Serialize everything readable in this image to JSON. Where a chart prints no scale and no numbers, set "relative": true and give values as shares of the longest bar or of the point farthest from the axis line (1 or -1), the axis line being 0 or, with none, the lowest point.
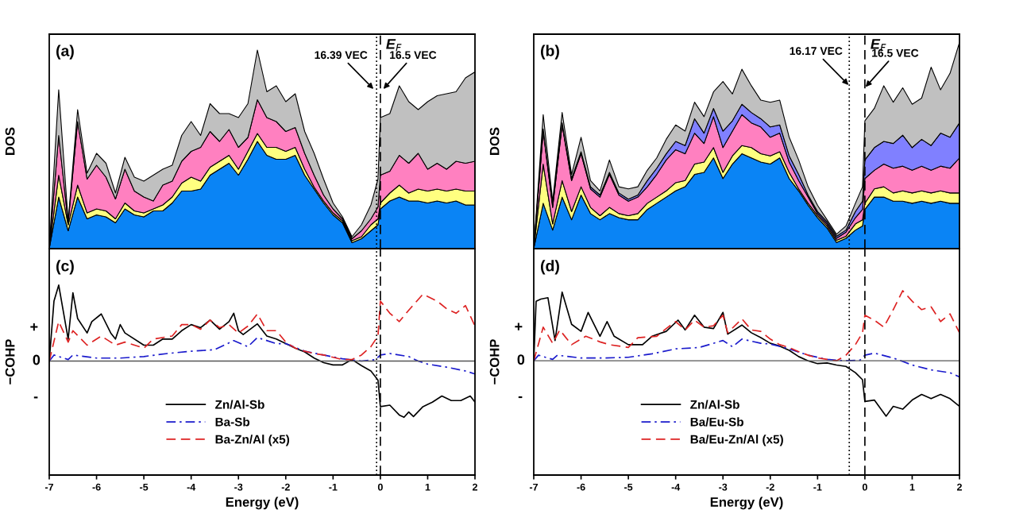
{
  "chart_data": [
    {
      "type": "area",
      "stacked": true,
      "relative": true,
      "ylabel": "DOS",
      "tick_labels": false,
      "xlim": [
        -7,
        2
      ],
      "ylim": [
        0,
        1.08
      ],
      "x": [
        -7,
        -6.8,
        -6.6,
        -6.4,
        -6.2,
        -6.0,
        -5.8,
        -5.6,
        -5.4,
        -5.2,
        -5.0,
        -4.8,
        -4.6,
        -4.4,
        -4.2,
        -4.0,
        -3.8,
        -3.6,
        -3.4,
        -3.2,
        -3.0,
        -2.8,
        -2.6,
        -2.4,
        -2.2,
        -2.0,
        -1.8,
        -1.6,
        -1.4,
        -1.2,
        -1.0,
        -0.8,
        -0.6,
        -0.4,
        -0.2,
        -0.05,
        0.0,
        0.2,
        0.4,
        0.6,
        0.8,
        1.0,
        1.2,
        1.4,
        1.6,
        1.8,
        2.0
      ],
      "series": [
        {
          "color": "#0a84f5",
          "values": [
            0,
            0.26,
            0.09,
            0.26,
            0.15,
            0.17,
            0.16,
            0.13,
            0.2,
            0.17,
            0.16,
            0.19,
            0.19,
            0.23,
            0.29,
            0.29,
            0.3,
            0.37,
            0.4,
            0.43,
            0.37,
            0.45,
            0.54,
            0.47,
            0.45,
            0.45,
            0.47,
            0.37,
            0.3,
            0.23,
            0.17,
            0.13,
            0.03,
            0.05,
            0.09,
            0.12,
            0.2,
            0.24,
            0.26,
            0.24,
            0.24,
            0.23,
            0.24,
            0.23,
            0.24,
            0.22,
            0.22
          ]
        },
        {
          "color": "#ffff80",
          "values": [
            0,
            0.11,
            0.03,
            0.06,
            0.03,
            0.03,
            0.03,
            0.02,
            0.03,
            0.02,
            0.02,
            0.01,
            0.03,
            0.03,
            0.04,
            0.07,
            0.04,
            0.04,
            0.04,
            0.04,
            0.03,
            0.04,
            0.04,
            0.04,
            0.06,
            0.04,
            0.04,
            0.03,
            0.01,
            0.01,
            0.01,
            0.01,
            0.01,
            0.01,
            0.03,
            0.03,
            0.03,
            0.04,
            0.06,
            0.04,
            0.06,
            0.06,
            0.06,
            0.06,
            0.06,
            0.07,
            0.07
          ]
        },
        {
          "color": "#ff80c0",
          "values": [
            0,
            0.2,
            0.01,
            0.32,
            0.17,
            0.22,
            0.17,
            0.1,
            0.17,
            0.1,
            0.08,
            0.04,
            0.1,
            0.08,
            0.11,
            0.13,
            0.17,
            0.18,
            0.1,
            0.13,
            0.11,
            0.07,
            0.17,
            0.15,
            0.13,
            0.1,
            0.1,
            0.08,
            0.06,
            0.03,
            0.02,
            0.01,
            0.01,
            0.03,
            0.03,
            0.06,
            0.14,
            0.11,
            0.15,
            0.15,
            0.18,
            0.11,
            0.13,
            0.11,
            0.14,
            0.14,
            0.15
          ]
        },
        {
          "color": "#c0c0c0",
          "values": [
            0,
            0.23,
            0.01,
            0.06,
            0.03,
            0.06,
            0.07,
            0.03,
            0.06,
            0.07,
            0.08,
            0.13,
            0.08,
            0.08,
            0.13,
            0.15,
            0.06,
            0.14,
            0.14,
            0.08,
            0.15,
            0.17,
            0.25,
            0.13,
            0.18,
            0.15,
            0.17,
            0.11,
            0.11,
            0.08,
            0.03,
            0.01,
            0.01,
            0.03,
            0.07,
            0.14,
            0.29,
            0.29,
            0.35,
            0.31,
            0.22,
            0.34,
            0.34,
            0.38,
            0.35,
            0.43,
            0.45
          ]
        }
      ],
      "ref_lines": [
        {
          "axis": "x",
          "value": -0.08,
          "line_style": "dotted"
        },
        {
          "axis": "x",
          "value": 0,
          "line_style": "dashed",
          "label": "E$_{F}$"
        }
      ],
      "annotations": [
        "(a)",
        {
          "text": "16.39 VEC",
          "x": -0.13,
          "y": 0.8
        },
        {
          "text": "16.5 VEC",
          "x": 0.05,
          "y": 0.8
        }
      ]
    },
    {
      "type": "area",
      "stacked": true,
      "relative": true,
      "ylabel": "DOS",
      "tick_labels": false,
      "xlim": [
        -7,
        2
      ],
      "ylim": [
        0,
        1.04
      ],
      "x": [
        -7,
        -6.8,
        -6.6,
        -6.4,
        -6.2,
        -6.0,
        -5.8,
        -5.6,
        -5.4,
        -5.2,
        -5.0,
        -4.8,
        -4.6,
        -4.4,
        -4.2,
        -4.0,
        -3.8,
        -3.6,
        -3.4,
        -3.2,
        -3.0,
        -2.8,
        -2.6,
        -2.4,
        -2.2,
        -2.0,
        -1.8,
        -1.6,
        -1.4,
        -1.2,
        -1.0,
        -0.8,
        -0.6,
        -0.4,
        -0.2,
        -0.05,
        0.0,
        0.2,
        0.4,
        0.6,
        0.8,
        1.0,
        1.2,
        1.4,
        1.6,
        1.8,
        2.0
      ],
      "series": [
        {
          "color": "#0a84f5",
          "values": [
            0,
            0.22,
            0.09,
            0.25,
            0.14,
            0.26,
            0.17,
            0.14,
            0.17,
            0.15,
            0.14,
            0.14,
            0.19,
            0.22,
            0.25,
            0.28,
            0.3,
            0.36,
            0.37,
            0.44,
            0.34,
            0.41,
            0.46,
            0.44,
            0.42,
            0.41,
            0.44,
            0.34,
            0.28,
            0.21,
            0.15,
            0.1,
            0.03,
            0.05,
            0.09,
            0.11,
            0.19,
            0.25,
            0.25,
            0.23,
            0.23,
            0.22,
            0.23,
            0.22,
            0.23,
            0.22,
            0.22
          ]
        },
        {
          "color": "#ffff80",
          "values": [
            0,
            0.19,
            0.03,
            0.08,
            0.04,
            0.04,
            0.03,
            0.02,
            0.03,
            0.02,
            0.02,
            0.03,
            0.03,
            0.03,
            0.03,
            0.04,
            0.03,
            0.05,
            0.05,
            0.05,
            0.03,
            0.04,
            0.04,
            0.05,
            0.04,
            0.04,
            0.03,
            0.03,
            0.01,
            0.01,
            0.01,
            0.01,
            0.01,
            0.01,
            0.03,
            0.03,
            0.03,
            0.04,
            0.05,
            0.04,
            0.05,
            0.05,
            0.05,
            0.05,
            0.05,
            0.05,
            0.05
          ]
        },
        {
          "color": "#ff80c0",
          "values": [
            0,
            0.16,
            0.08,
            0.27,
            0.15,
            0.16,
            0.09,
            0.09,
            0.16,
            0.09,
            0.07,
            0.08,
            0.08,
            0.11,
            0.15,
            0.16,
            0.13,
            0.15,
            0.09,
            0.15,
            0.12,
            0.12,
            0.15,
            0.12,
            0.13,
            0.09,
            0.09,
            0.05,
            0.04,
            0.03,
            0.01,
            0.01,
            0.01,
            0.02,
            0.03,
            0.05,
            0.12,
            0.09,
            0.11,
            0.12,
            0.12,
            0.11,
            0.12,
            0.11,
            0.12,
            0.12,
            0.17
          ]
        },
        {
          "color": "#8080ff",
          "values": [
            0,
            0.01,
            0.01,
            0.01,
            0.01,
            0.01,
            0.01,
            0.01,
            0.01,
            0.01,
            0.01,
            0.01,
            0.03,
            0.03,
            0.03,
            0.04,
            0.04,
            0.07,
            0.05,
            0.04,
            0.08,
            0.05,
            0.05,
            0.05,
            0.04,
            0.05,
            0.04,
            0.03,
            0.03,
            0.01,
            0.01,
            0.01,
            0.01,
            0.01,
            0.03,
            0.04,
            0.09,
            0.11,
            0.11,
            0.12,
            0.15,
            0.11,
            0.13,
            0.12,
            0.16,
            0.15,
            0.17
          ]
        },
        {
          "color": "#c0c0c0",
          "values": [
            0,
            0.07,
            0.02,
            0.05,
            0.02,
            0.07,
            0.03,
            0.02,
            0.06,
            0.03,
            0.05,
            0.04,
            0.05,
            0.05,
            0.07,
            0.08,
            0.07,
            0.08,
            0.08,
            0.08,
            0.24,
            0.13,
            0.17,
            0.13,
            0.09,
            0.12,
            0.12,
            0.09,
            0.07,
            0.04,
            0.03,
            0.01,
            0.01,
            0.02,
            0.04,
            0.07,
            0.19,
            0.19,
            0.27,
            0.2,
            0.23,
            0.21,
            0.2,
            0.38,
            0.21,
            0.31,
            0.39
          ]
        }
      ],
      "ref_lines": [
        {
          "axis": "x",
          "value": -0.33,
          "line_style": "dotted"
        },
        {
          "axis": "x",
          "value": 0,
          "line_style": "dashed",
          "label": "E$_{F}$"
        }
      ],
      "annotations": [
        "(b)",
        {
          "text": "16.17 VEC",
          "x": -0.33,
          "y": 0.79
        },
        {
          "text": "16.5 VEC",
          "x": 0.0,
          "y": 0.78
        }
      ]
    },
    {
      "type": "line",
      "relative": true,
      "xlabel": "Energy (eV)",
      "ylabel": "−COHP",
      "xlim": [
        -7,
        2
      ],
      "xticks": [
        -7,
        -6,
        -5,
        -4,
        -3,
        -2,
        -1,
        0,
        1,
        2
      ],
      "ylim": [
        -1.5,
        1.48
      ],
      "legend": "bottom",
      "series": [
        {
          "name": "Zn/Al-Sb",
          "color": "#000000",
          "line_style": "solid",
          "x": [
            -7,
            -6.9,
            -6.8,
            -6.6,
            -6.5,
            -6.4,
            -6.2,
            -6.1,
            -5.9,
            -5.7,
            -5.6,
            -5.5,
            -5.4,
            -5.0,
            -4.8,
            -4.6,
            -4.4,
            -4.2,
            -4.0,
            -3.8,
            -3.6,
            -3.4,
            -3.2,
            -3.1,
            -3.0,
            -2.9,
            -2.6,
            -2.4,
            -2.2,
            -2.0,
            -1.8,
            -1.6,
            -1.4,
            -1.2,
            -1.0,
            -0.8,
            -0.6,
            -0.4,
            -0.2,
            -0.05,
            0.0,
            0.2,
            0.4,
            0.5,
            0.6,
            0.7,
            0.9,
            1.1,
            1.3,
            1.5,
            1.7,
            1.9,
            2.0
          ],
          "values": [
            0,
            0.79,
            1.0,
            0.29,
            0.9,
            0.56,
            0.37,
            0.52,
            0.62,
            0.37,
            0.29,
            0.48,
            0.37,
            0.21,
            0.21,
            0.29,
            0.29,
            0.4,
            0.48,
            0.44,
            0.54,
            0.42,
            0.52,
            0.63,
            0.4,
            0.35,
            0.49,
            0.33,
            0.29,
            0.23,
            0.17,
            0.12,
            0.04,
            -0.02,
            -0.05,
            -0.05,
            0.02,
            -0.06,
            -0.13,
            -0.25,
            -0.6,
            -0.58,
            -0.71,
            -0.74,
            -0.67,
            -0.73,
            -0.6,
            -0.54,
            -0.46,
            -0.52,
            -0.52,
            -0.46,
            -0.54
          ]
        },
        {
          "name": "Ba-Sb",
          "color": "#1a1acc",
          "line_style": "dashdot",
          "x": [
            -7,
            -6.9,
            -6.6,
            -6.5,
            -6.0,
            -5.5,
            -5.0,
            -4.5,
            -4.0,
            -3.5,
            -3.1,
            -2.8,
            -2.6,
            -2.2,
            -2.0,
            -1.6,
            -1.2,
            -0.8,
            -0.4,
            -0.1,
            0.0,
            0.2,
            0.6,
            0.8,
            1.0,
            1.4,
            1.8,
            2.0
          ],
          "values": [
            0,
            0.08,
            0.02,
            0.08,
            0.04,
            0.04,
            0.06,
            0.1,
            0.13,
            0.15,
            0.27,
            0.19,
            0.31,
            0.23,
            0.23,
            0.13,
            0.08,
            0.03,
            0.0,
            0.02,
            0.08,
            0.1,
            0.06,
            0.0,
            -0.04,
            -0.08,
            -0.13,
            -0.17
          ]
        },
        {
          "name": "Ba-Zn/Al (x5)",
          "color": "#dd2222",
          "line_style": "dashed",
          "x": [
            -7,
            -6.8,
            -6.6,
            -6.5,
            -6.2,
            -5.9,
            -5.6,
            -5.4,
            -5.0,
            -4.8,
            -4.4,
            -4.2,
            -4.0,
            -3.8,
            -3.6,
            -3.4,
            -3.2,
            -3.0,
            -2.8,
            -2.6,
            -2.4,
            -2.2,
            -2.0,
            -1.8,
            -1.6,
            -1.4,
            -1.2,
            -1.0,
            -0.8,
            -0.6,
            -0.4,
            -0.2,
            -0.05,
            0.0,
            0.2,
            0.4,
            0.6,
            0.9,
            1.0,
            1.2,
            1.4,
            1.6,
            1.8,
            2.0
          ],
          "values": [
            0,
            0.52,
            0.25,
            0.4,
            0.21,
            0.33,
            0.21,
            0.25,
            0.17,
            0.29,
            0.33,
            0.48,
            0.48,
            0.42,
            0.54,
            0.44,
            0.48,
            0.37,
            0.46,
            0.62,
            0.4,
            0.4,
            0.25,
            0.17,
            0.13,
            0.1,
            0.08,
            0.05,
            0.02,
            0.02,
            0.08,
            0.19,
            0.33,
            0.79,
            0.63,
            0.52,
            0.67,
            0.88,
            0.85,
            0.79,
            0.69,
            0.63,
            0.73,
            0.46
          ]
        }
      ],
      "ref_lines": [
        {
          "axis": "y",
          "value": 0,
          "line_style": "solid",
          "color": "#555555",
          "label": "0"
        },
        {
          "axis": "x",
          "value": -0.08,
          "line_style": "dotted"
        },
        {
          "axis": "x",
          "value": 0,
          "line_style": "dashed"
        }
      ],
      "annotations": [
        "(c)",
        "+",
        "-"
      ]
    },
    {
      "type": "line",
      "relative": true,
      "xlabel": "Energy (eV)",
      "ylabel": "−COHP",
      "xlim": [
        -7,
        2
      ],
      "xticks": [
        -7,
        -6,
        -5,
        -4,
        -3,
        -2,
        -1,
        0,
        1,
        2
      ],
      "ylim": [
        -1.63,
        1.6
      ],
      "legend": "bottom",
      "series": [
        {
          "name": "Zn/Al-Sb",
          "color": "#000000",
          "line_style": "solid",
          "x": [
            -7,
            -6.95,
            -6.85,
            -6.7,
            -6.55,
            -6.4,
            -6.2,
            -6.0,
            -5.85,
            -5.6,
            -5.45,
            -5.3,
            -5.0,
            -4.7,
            -4.5,
            -4.2,
            -3.95,
            -3.8,
            -3.6,
            -3.4,
            -3.2,
            -3.0,
            -2.9,
            -2.6,
            -2.4,
            -2.2,
            -2.0,
            -1.8,
            -1.6,
            -1.4,
            -1.2,
            -1.0,
            -0.8,
            -0.6,
            -0.4,
            -0.2,
            -0.05,
            0.0,
            0.2,
            0.45,
            0.6,
            0.8,
            1.0,
            1.2,
            1.4,
            1.6,
            1.8,
            2.0
          ],
          "values": [
            0,
            0.85,
            0.88,
            0.9,
            0.29,
            0.98,
            0.52,
            0.42,
            0.69,
            0.35,
            0.56,
            0.35,
            0.23,
            0.23,
            0.35,
            0.42,
            0.58,
            0.44,
            0.65,
            0.48,
            0.46,
            0.69,
            0.38,
            0.51,
            0.4,
            0.33,
            0.25,
            0.21,
            0.15,
            0.06,
            0,
            -0.04,
            -0.03,
            -0.06,
            -0.08,
            -0.17,
            -0.27,
            -0.58,
            -0.56,
            -0.79,
            -0.65,
            -0.69,
            -0.56,
            -0.48,
            -0.54,
            -0.48,
            -0.54,
            -0.65
          ]
        },
        {
          "name": "Ba/Eu-Sb",
          "color": "#1a1acc",
          "line_style": "dashdot",
          "x": [
            -7,
            -6.9,
            -6.6,
            -6.5,
            -6.0,
            -5.5,
            -5.0,
            -4.5,
            -4.0,
            -3.5,
            -3.0,
            -2.8,
            -2.6,
            -2.2,
            -2.0,
            -1.6,
            -1.2,
            -0.8,
            -0.4,
            -0.1,
            0.0,
            0.2,
            0.6,
            0.8,
            1.0,
            1.4,
            1.8,
            2.0
          ],
          "values": [
            0,
            0.08,
            0.02,
            0.08,
            0.04,
            0.04,
            0.05,
            0.1,
            0.17,
            0.19,
            0.29,
            0.2,
            0.31,
            0.25,
            0.24,
            0.17,
            0.08,
            0.02,
            0,
            0.01,
            0.08,
            0.11,
            0.04,
            -0.01,
            -0.06,
            -0.13,
            -0.17,
            -0.23
          ]
        },
        {
          "name": "Ba/Eu-Zn/Al (x5)",
          "color": "#dd2222",
          "line_style": "dashed",
          "x": [
            -7,
            -6.8,
            -6.6,
            -6.45,
            -6.2,
            -5.9,
            -5.6,
            -5.4,
            -5.0,
            -4.8,
            -4.4,
            -4.2,
            -4.0,
            -3.8,
            -3.6,
            -3.4,
            -3.2,
            -3.0,
            -2.9,
            -2.6,
            -2.4,
            -2.2,
            -2.0,
            -1.8,
            -1.6,
            -1.4,
            -1.2,
            -1.0,
            -0.8,
            -0.6,
            -0.4,
            -0.2,
            -0.05,
            0.0,
            0.2,
            0.4,
            0.6,
            0.8,
            1.0,
            1.2,
            1.4,
            1.6,
            1.8,
            2.0
          ],
          "values": [
            0,
            0.48,
            0.25,
            0.44,
            0.23,
            0.35,
            0.27,
            0.23,
            0.19,
            0.33,
            0.35,
            0.46,
            0.56,
            0.44,
            0.58,
            0.48,
            0.5,
            0.65,
            0.4,
            0.6,
            0.44,
            0.42,
            0.31,
            0.23,
            0.19,
            0.13,
            0.08,
            0.04,
            0.02,
            0,
            0.08,
            0.23,
            0.4,
            0.65,
            0.58,
            0.48,
            0.73,
            1.0,
            0.85,
            0.73,
            0.77,
            0.56,
            0.67,
            0.4
          ]
        }
      ],
      "ref_lines": [
        {
          "axis": "y",
          "value": 0,
          "line_style": "solid",
          "color": "#555555",
          "label": "0"
        },
        {
          "axis": "x",
          "value": -0.33,
          "line_style": "dotted"
        },
        {
          "axis": "x",
          "value": 0,
          "line_style": "dashed"
        }
      ],
      "annotations": [
        "(d)",
        "+",
        "-"
      ]
    }
  ]
}
